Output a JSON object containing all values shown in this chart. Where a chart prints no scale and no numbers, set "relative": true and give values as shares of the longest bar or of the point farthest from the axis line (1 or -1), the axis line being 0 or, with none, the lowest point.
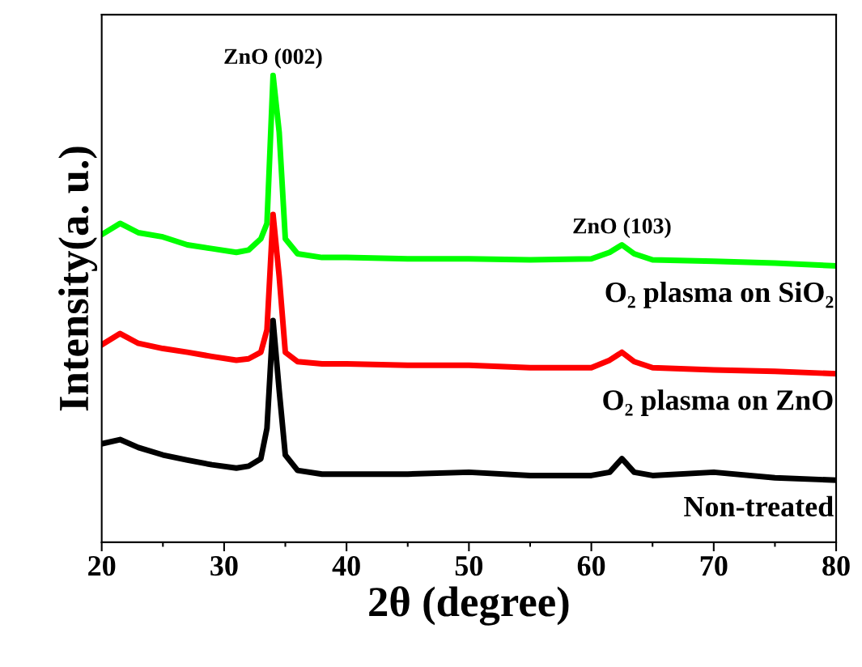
{
  "chart_data": {
    "type": "line",
    "relative": true,
    "xlabel": "2θ (degree)",
    "ylabel": "Intensity(a. u.)",
    "xlim": [
      20,
      80
    ],
    "xticks": [
      20,
      {
        "value": 25,
        "label": null
      },
      30,
      {
        "value": 35,
        "label": null
      },
      40,
      {
        "value": 45,
        "label": null
      },
      50,
      {
        "value": 55,
        "label": null
      },
      60,
      {
        "value": 65,
        "label": null
      },
      70,
      {
        "value": 75,
        "label": null
      },
      80
    ],
    "tick_labels": "x",
    "grid": false,
    "legend": false,
    "marker": "none",
    "line_style": "solid",
    "annotations": [
      {
        "text": "ZnO (002)",
        "x": 34,
        "y": 1.0
      },
      {
        "text": "ZnO (103)",
        "x": 62.5,
        "y": 0.637
      }
    ],
    "x": [
      20,
      21.5,
      23,
      25,
      27,
      29,
      31,
      32,
      33,
      33.5,
      34,
      34.5,
      35,
      36,
      38,
      40,
      45,
      50,
      55,
      60,
      61.5,
      62.5,
      63.5,
      65,
      70,
      75,
      80
    ],
    "series": [
      {
        "name": "O₂ plasma on SiO₂",
        "color": "#00ff00",
        "values": [
          0.659,
          0.683,
          0.663,
          0.654,
          0.637,
          0.629,
          0.621,
          0.626,
          0.65,
          0.683,
          1.0,
          0.878,
          0.65,
          0.618,
          0.61,
          0.61,
          0.607,
          0.607,
          0.605,
          0.607,
          0.621,
          0.637,
          0.618,
          0.605,
          0.602,
          0.598,
          0.592
        ]
      },
      {
        "name": "O₂ plasma on ZnO",
        "color": "#ff0000",
        "values": [
          0.423,
          0.447,
          0.426,
          0.415,
          0.407,
          0.398,
          0.39,
          0.393,
          0.407,
          0.455,
          0.702,
          0.569,
          0.407,
          0.387,
          0.382,
          0.382,
          0.379,
          0.379,
          0.374,
          0.374,
          0.39,
          0.407,
          0.387,
          0.374,
          0.369,
          0.366,
          0.361
        ]
      },
      {
        "name": "Non-treated",
        "color": "#000000",
        "values": [
          0.211,
          0.22,
          0.203,
          0.187,
          0.176,
          0.166,
          0.159,
          0.163,
          0.179,
          0.244,
          0.475,
          0.325,
          0.187,
          0.154,
          0.146,
          0.146,
          0.146,
          0.15,
          0.143,
          0.143,
          0.15,
          0.179,
          0.15,
          0.143,
          0.15,
          0.138,
          0.133
        ]
      }
    ]
  }
}
